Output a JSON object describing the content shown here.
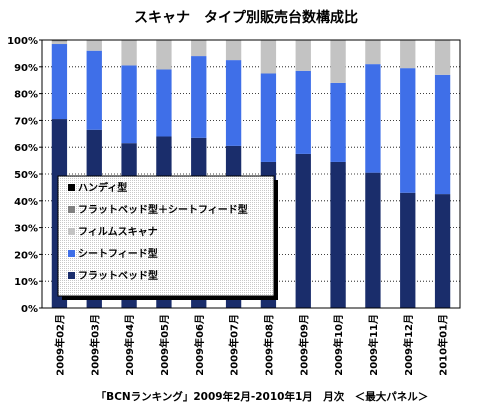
{
  "chart_data": {
    "type": "bar",
    "stacked": true,
    "percent": true,
    "title": "スキャナ　タイプ別販売台数構成比",
    "footer": "「BCNランキング」2009年2月-2010年1月　月次　＜最大パネル＞",
    "categories": [
      "2009年02月",
      "2009年03月",
      "2009年04月",
      "2009年05月",
      "2009年06月",
      "2009年07月",
      "2009年08月",
      "2009年09月",
      "2009年10月",
      "2009年11月",
      "2009年12月",
      "2010年01月"
    ],
    "ylim": [
      0,
      100
    ],
    "yticks": [
      "0%",
      "10%",
      "20%",
      "30%",
      "40%",
      "50%",
      "60%",
      "70%",
      "80%",
      "90%",
      "100%"
    ],
    "legend_position": "center-left",
    "series": [
      {
        "name": "フラットベッド型",
        "color": "#1a2d6b",
        "values": [
          70.5,
          66.5,
          61.5,
          64.0,
          63.5,
          60.5,
          54.5,
          57.5,
          54.5,
          50.5,
          43.0,
          42.5
        ]
      },
      {
        "name": "シートフィード型",
        "color": "#3f6fe8",
        "values": [
          28.0,
          29.5,
          29.0,
          25.0,
          30.5,
          32.0,
          33.0,
          31.0,
          29.5,
          40.5,
          46.5,
          44.5
        ]
      },
      {
        "name": "フィルムスキャナ",
        "color": "#c3c3c3",
        "values": [
          1.0,
          4.0,
          9.5,
          11.0,
          6.0,
          7.5,
          12.5,
          11.5,
          16.0,
          9.0,
          10.5,
          13.0
        ]
      },
      {
        "name": "フラットベッド型＋シートフィード型",
        "color": "#808080",
        "values": [
          0.5,
          0,
          0,
          0,
          0,
          0,
          0,
          0,
          0,
          0,
          0,
          0
        ]
      },
      {
        "name": "ハンディ型",
        "color": "#000000",
        "values": [
          0,
          0,
          0,
          0,
          0,
          0,
          0,
          0,
          0,
          0,
          0,
          0
        ]
      }
    ],
    "legend_order": [
      4,
      3,
      2,
      1,
      0
    ],
    "grid": true
  }
}
